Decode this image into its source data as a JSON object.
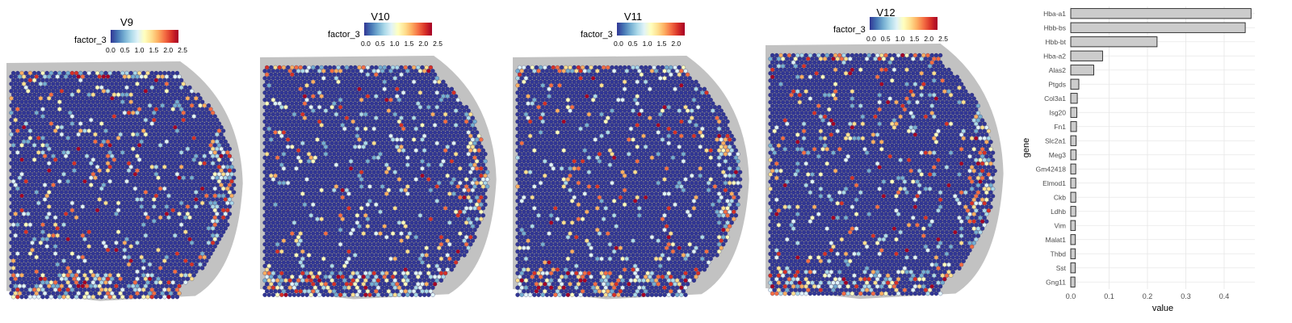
{
  "colors": {
    "scale": [
      "#313695",
      "#4575b4",
      "#74add1",
      "#abd9e9",
      "#e0f3f8",
      "#ffffbf",
      "#fee090",
      "#fdae61",
      "#f46d43",
      "#d73027",
      "#a50026"
    ],
    "tissue_bg": "#9a9a9a",
    "spot_base": "#3b4a9c",
    "bar_fill": "#cccccc",
    "bar_stroke": "#222222"
  },
  "panels": [
    {
      "title": "V9",
      "legend_label": "factor_3",
      "ticks": [
        "0.0",
        "0.5",
        "1.0",
        "1.5",
        "2.0",
        "2.5"
      ]
    },
    {
      "title": "V10",
      "legend_label": "factor_3",
      "ticks": [
        "0.0",
        "0.5",
        "1.0",
        "1.5",
        "2.0",
        "2.5"
      ]
    },
    {
      "title": "V11",
      "legend_label": "factor_3",
      "ticks": [
        "0.0",
        "0.5",
        "1.0",
        "1.5",
        "2.0"
      ]
    },
    {
      "title": "V12",
      "legend_label": "factor_3",
      "ticks": [
        "0.0",
        "0.5",
        "1.0",
        "1.5",
        "2.0",
        "2.5"
      ]
    }
  ],
  "chart_data": {
    "type": "bar",
    "orientation": "horizontal",
    "categories": [
      "Hba-a1",
      "Hbb-bs",
      "Hbb-bt",
      "Hba-a2",
      "Alas2",
      "Ptgds",
      "Col3a1",
      "Isg20",
      "Fn1",
      "Slc2a1",
      "Meg3",
      "Gm42418",
      "Elmod1",
      "Ckb",
      "Ldhb",
      "Vim",
      "Malat1",
      "Thbd",
      "Sst",
      "Gng11"
    ],
    "values": [
      0.47,
      0.455,
      0.225,
      0.083,
      0.06,
      0.021,
      0.017,
      0.016,
      0.015,
      0.014,
      0.014,
      0.013,
      0.013,
      0.013,
      0.013,
      0.012,
      0.012,
      0.012,
      0.012,
      0.011
    ],
    "xlabel": "value",
    "ylabel": "gene",
    "xticks": [
      "0.0",
      "0.1",
      "0.2",
      "0.3",
      "0.4"
    ],
    "xlim": [
      0,
      0.48
    ],
    "grid": true
  }
}
